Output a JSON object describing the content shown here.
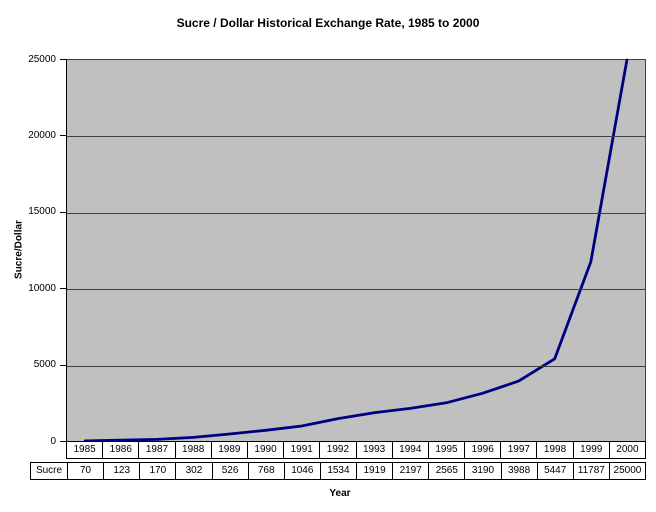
{
  "chart_data": {
    "type": "line",
    "title": "Sucre / Dollar Historical Exchange Rate, 1985 to 2000",
    "xlabel": "Year",
    "ylabel": "Sucre/Dollar",
    "categories": [
      "1985",
      "1986",
      "1987",
      "1988",
      "1989",
      "1990",
      "1991",
      "1992",
      "1993",
      "1994",
      "1995",
      "1996",
      "1997",
      "1998",
      "1999",
      "2000"
    ],
    "series": [
      {
        "name": "Sucre",
        "values": [
          70,
          123,
          170,
          302,
          526,
          768,
          1046,
          1534,
          1919,
          2197,
          2565,
          3190,
          3988,
          5447,
          11787,
          25000
        ]
      }
    ],
    "ylim": [
      0,
      25000
    ],
    "yticks": [
      0,
      5000,
      10000,
      15000,
      20000,
      25000
    ],
    "grid": true,
    "legend_position": "data-table",
    "colors": {
      "line": "#000080",
      "plot_background": "#c0c0c0",
      "gridline": "#404040",
      "axis": "#000000",
      "text": "#000000",
      "page_background": "#ffffff"
    }
  }
}
